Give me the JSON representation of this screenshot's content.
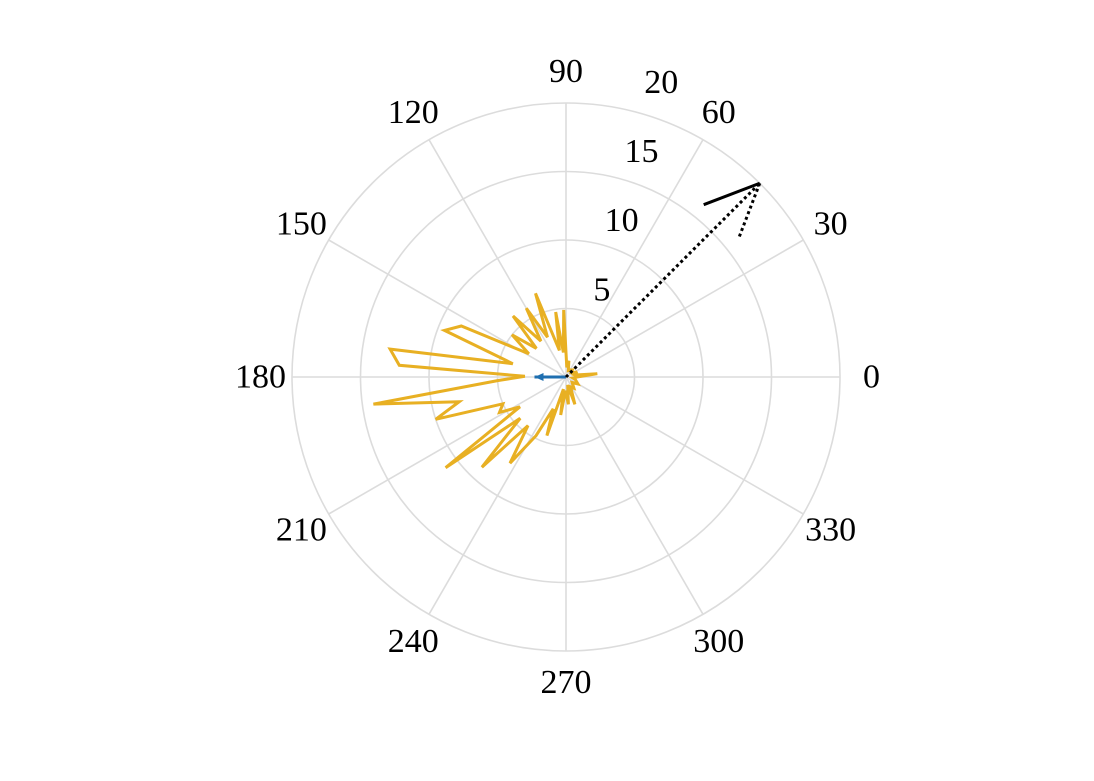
{
  "chart_data": {
    "type": "polar",
    "title": "",
    "theta_unit": "degrees",
    "theta_ticks": [
      0,
      30,
      60,
      90,
      120,
      150,
      180,
      210,
      240,
      270,
      300,
      330
    ],
    "theta_tick_labels": [
      "0",
      "30",
      "60",
      "90",
      "120",
      "150",
      "180",
      "210",
      "240",
      "270",
      "300",
      "330"
    ],
    "r_ticks": [
      5,
      10,
      15,
      20
    ],
    "r_tick_labels": [
      "5",
      "10",
      "15",
      "20"
    ],
    "r_lim": [
      0,
      20
    ],
    "r_tick_angle_deg": 74,
    "grid": true,
    "colors": {
      "grid": "#dcdcdc",
      "distribution": "#e8b023",
      "small_arrow": "#1f6fb0",
      "large_arrow": "#000000"
    },
    "series": [
      {
        "role": "distribution",
        "points": [
          {
            "theta": 0,
            "r": 0.8
          },
          {
            "theta": 6,
            "r": 2.3
          },
          {
            "theta": 12,
            "r": 0.7
          },
          {
            "theta": 18,
            "r": 0.6
          },
          {
            "theta": 25,
            "r": 0.9
          },
          {
            "theta": 32,
            "r": 0.6
          },
          {
            "theta": 40,
            "r": 0.5
          },
          {
            "theta": 48,
            "r": 0.7
          },
          {
            "theta": 58,
            "r": 0.6
          },
          {
            "theta": 70,
            "r": 0.5
          },
          {
            "theta": 80,
            "r": 1.2
          },
          {
            "theta": 85,
            "r": 0.7
          },
          {
            "theta": 92,
            "r": 4.9
          },
          {
            "theta": 96,
            "r": 1.8
          },
          {
            "theta": 99,
            "r": 4.8
          },
          {
            "theta": 104,
            "r": 2.0
          },
          {
            "theta": 110,
            "r": 6.5
          },
          {
            "theta": 115,
            "r": 3.2
          },
          {
            "theta": 120,
            "r": 5.8
          },
          {
            "theta": 125,
            "r": 3.2
          },
          {
            "theta": 131,
            "r": 5.9
          },
          {
            "theta": 136,
            "r": 3.0
          },
          {
            "theta": 142,
            "r": 5.0
          },
          {
            "theta": 148,
            "r": 3.2
          },
          {
            "theta": 154,
            "r": 8.5
          },
          {
            "theta": 159,
            "r": 9.5
          },
          {
            "theta": 166,
            "r": 4.0
          },
          {
            "theta": 171,
            "r": 13.0
          },
          {
            "theta": 176,
            "r": 12.2
          },
          {
            "theta": 179,
            "r": 3.0
          },
          {
            "theta": 183,
            "r": 5.0
          },
          {
            "theta": 188,
            "r": 14.2
          },
          {
            "theta": 193,
            "r": 8.0
          },
          {
            "theta": 198,
            "r": 10.0
          },
          {
            "theta": 203,
            "r": 5.0
          },
          {
            "theta": 208,
            "r": 5.5
          },
          {
            "theta": 213,
            "r": 4.0
          },
          {
            "theta": 217,
            "r": 11.0
          },
          {
            "theta": 222,
            "r": 4.5
          },
          {
            "theta": 227,
            "r": 9.0
          },
          {
            "theta": 232,
            "r": 4.5
          },
          {
            "theta": 237,
            "r": 7.5
          },
          {
            "theta": 243,
            "r": 4.8
          },
          {
            "theta": 248,
            "r": 2.5
          },
          {
            "theta": 252,
            "r": 4.5
          },
          {
            "theta": 258,
            "r": 0.9
          },
          {
            "theta": 262,
            "r": 2.8
          },
          {
            "theta": 268,
            "r": 1.0
          },
          {
            "theta": 275,
            "r": 2.0
          },
          {
            "theta": 282,
            "r": 0.6
          },
          {
            "theta": 288,
            "r": 2.1
          },
          {
            "theta": 295,
            "r": 0.8
          },
          {
            "theta": 305,
            "r": 1.0
          },
          {
            "theta": 318,
            "r": 0.6
          },
          {
            "theta": 330,
            "r": 1.0
          },
          {
            "theta": 345,
            "r": 0.7
          },
          {
            "theta": 352,
            "r": 0.5
          }
        ]
      },
      {
        "role": "small_arrow",
        "theta": 180,
        "r": 2.3
      },
      {
        "role": "large_arrow_dotted",
        "theta": 45,
        "r": 20
      }
    ]
  }
}
